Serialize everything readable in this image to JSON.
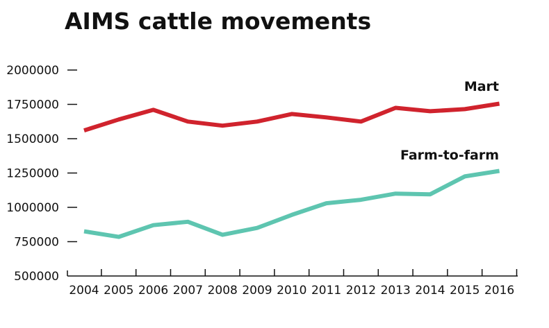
{
  "chart_data": {
    "type": "line",
    "title": "AIMS cattle movements",
    "xlabel": "",
    "ylabel": "",
    "x": [
      "2004",
      "2005",
      "2006",
      "2007",
      "2008",
      "2009",
      "2010",
      "2011",
      "2012",
      "2013",
      "2014",
      "2015",
      "2016"
    ],
    "y_ticks": [
      "500000",
      "750000",
      "1000000",
      "1250000",
      "1500000",
      "1750000",
      "2000000"
    ],
    "ylim": [
      500000,
      2000000
    ],
    "grid": false,
    "legend": "direct labels at line ends",
    "series": [
      {
        "name": "Mart",
        "color": "#d0232d",
        "values": [
          1560000,
          1640000,
          1710000,
          1625000,
          1595000,
          1625000,
          1680000,
          1655000,
          1625000,
          1725000,
          1700000,
          1715000,
          1755000
        ]
      },
      {
        "name": "Farm-to-farm",
        "color": "#5ec5b0",
        "values": [
          825000,
          785000,
          870000,
          895000,
          800000,
          850000,
          945000,
          1030000,
          1055000,
          1100000,
          1095000,
          1225000,
          1265000
        ]
      }
    ]
  }
}
